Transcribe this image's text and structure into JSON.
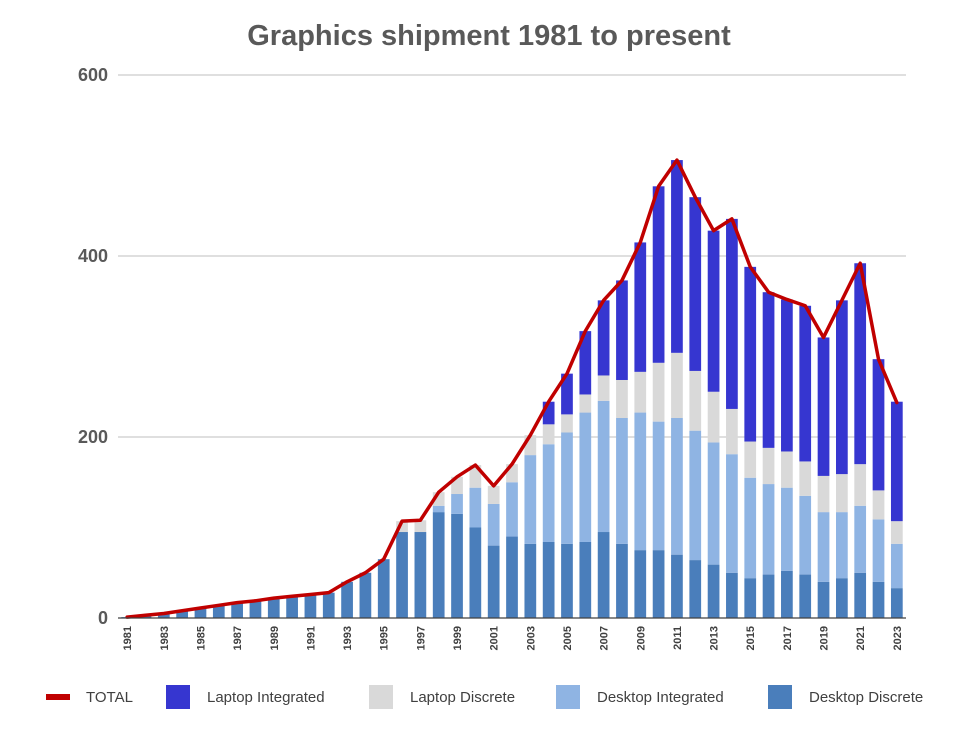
{
  "chart_data": {
    "type": "bar",
    "title": "Graphics shipment 1981 to present",
    "xlabel": "",
    "ylabel": "",
    "ylim": [
      0,
      600
    ],
    "yticks": [
      "0",
      "200",
      "400",
      "600"
    ],
    "grid": true,
    "legend_position": "bottom",
    "stacked": true,
    "x": [
      "1981",
      "1982",
      "1983",
      "1984",
      "1985",
      "1986",
      "1987",
      "1988",
      "1989",
      "1990",
      "1991",
      "1992",
      "1993",
      "1994",
      "1995",
      "1996",
      "1997",
      "1998",
      "1999",
      "2000",
      "2001",
      "2002",
      "2003",
      "2004",
      "2005",
      "2006",
      "2007",
      "2008",
      "2009",
      "2010",
      "2011",
      "2012",
      "2013",
      "2014",
      "2015",
      "2016",
      "2017",
      "2018",
      "2019",
      "2020",
      "2021",
      "2022",
      "2023"
    ],
    "x_tick_labels": [
      "1981",
      "",
      "1983",
      "",
      "1985",
      "",
      "1987",
      "",
      "1989",
      "",
      "1991",
      "",
      "1993",
      "",
      "1995",
      "",
      "1997",
      "",
      "1999",
      "",
      "2001",
      "",
      "2003",
      "",
      "2005",
      "",
      "2007",
      "",
      "2009",
      "",
      "2011",
      "",
      "2013",
      "",
      "2015",
      "",
      "2017",
      "",
      "2019",
      "",
      "2021",
      "",
      "2023"
    ],
    "series": [
      {
        "name": "Desktop Discrete",
        "kind": "bar",
        "color": "#4a7ebb",
        "values": [
          1,
          3,
          5,
          8,
          11,
          14,
          17,
          19,
          22,
          24,
          26,
          28,
          40,
          50,
          65,
          95,
          95,
          117,
          115,
          100,
          80,
          90,
          82,
          84,
          82,
          84,
          95,
          82,
          75,
          75,
          70,
          64,
          59,
          50,
          44,
          48,
          52,
          48,
          40,
          44,
          50,
          40,
          33
        ]
      },
      {
        "name": "Desktop Integrated",
        "kind": "bar",
        "color": "#8fb4e3",
        "values": [
          0,
          0,
          0,
          0,
          0,
          0,
          0,
          0,
          0,
          0,
          0,
          0,
          0,
          0,
          0,
          0,
          0,
          7,
          22,
          44,
          46,
          60,
          98,
          108,
          123,
          143,
          145,
          139,
          152,
          142,
          151,
          143,
          135,
          131,
          111,
          100,
          92,
          87,
          77,
          73,
          74,
          69,
          49
        ]
      },
      {
        "name": "Laptop Discrete",
        "kind": "bar",
        "color": "#d9d9d9",
        "values": [
          0,
          0,
          0,
          0,
          0,
          0,
          0,
          0,
          0,
          0,
          0,
          0,
          0,
          0,
          0,
          12,
          13,
          15,
          19,
          25,
          20,
          20,
          22,
          22,
          20,
          20,
          28,
          42,
          45,
          65,
          72,
          66,
          56,
          50,
          40,
          40,
          40,
          38,
          40,
          42,
          46,
          32,
          25
        ]
      },
      {
        "name": "Laptop Integrated",
        "kind": "bar",
        "color": "#3636d0",
        "values": [
          0,
          0,
          0,
          0,
          0,
          0,
          0,
          0,
          0,
          0,
          0,
          0,
          0,
          0,
          0,
          0,
          0,
          0,
          0,
          0,
          0,
          0,
          0,
          25,
          45,
          70,
          83,
          110,
          143,
          195,
          213,
          192,
          178,
          210,
          193,
          172,
          168,
          172,
          153,
          192,
          222,
          145,
          132
        ]
      },
      {
        "name": "TOTAL",
        "kind": "line",
        "color": "#c00000",
        "values": [
          1,
          3,
          5,
          8,
          11,
          14,
          17,
          19,
          22,
          24,
          26,
          28,
          40,
          50,
          65,
          107,
          108,
          139,
          156,
          169,
          146,
          170,
          202,
          239,
          270,
          317,
          351,
          373,
          415,
          477,
          506,
          465,
          428,
          441,
          388,
          360,
          352,
          345,
          310,
          351,
          392,
          286,
          238
        ]
      }
    ]
  }
}
